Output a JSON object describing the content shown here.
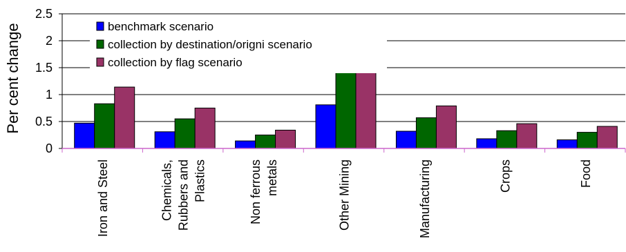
{
  "chart_data": {
    "type": "bar",
    "title": "",
    "xlabel": "",
    "ylabel": "Per cent change",
    "ylim": [
      0,
      2.5
    ],
    "yticks": [
      "0",
      "0.5",
      "1",
      "1.5",
      "2",
      "2.5"
    ],
    "ytick_values": [
      0,
      0.5,
      1,
      1.5,
      2,
      2.5
    ],
    "grid": true,
    "legend_position": "top-left",
    "categories": [
      [
        "Iron and Steel"
      ],
      [
        "Chemicals,",
        "Rubbers and",
        "Plastics"
      ],
      [
        "Non ferrous",
        "metals"
      ],
      [
        "Other Mining"
      ],
      [
        "Manufacturing"
      ],
      [
        "Crops"
      ],
      [
        "Food"
      ]
    ],
    "series": [
      {
        "name": "benchmark scenario",
        "color": "#0000ff",
        "values": [
          0.47,
          0.31,
          0.14,
          0.81,
          0.32,
          0.18,
          0.16
        ]
      },
      {
        "name": "collection by destination/origni scenario",
        "color": "#006600",
        "values": [
          0.83,
          0.55,
          0.25,
          1.42,
          0.57,
          0.33,
          0.3
        ]
      },
      {
        "name": "collection by flag scenario",
        "color": "#993366",
        "values": [
          1.14,
          0.75,
          0.34,
          1.42,
          0.79,
          0.46,
          0.41
        ]
      }
    ]
  }
}
